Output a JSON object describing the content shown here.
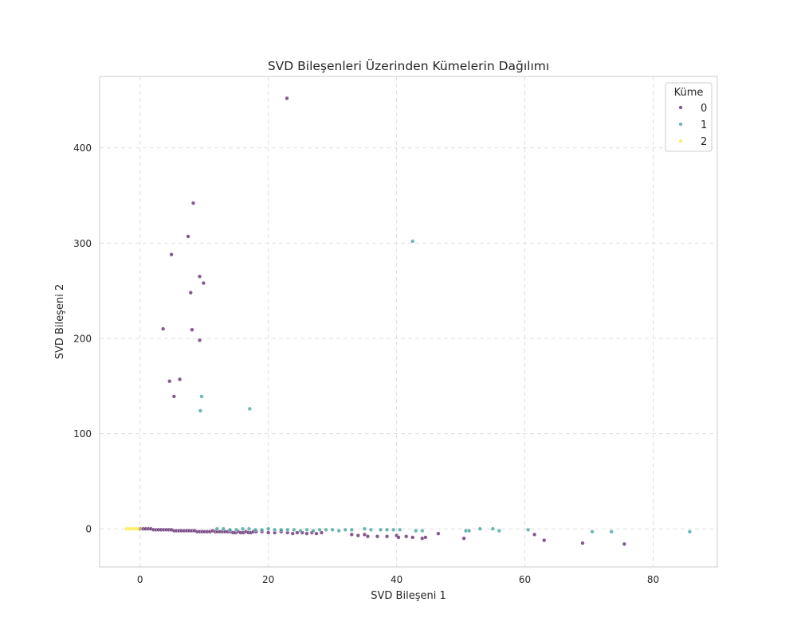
{
  "chart_data": {
    "type": "scatter",
    "title": "SVD Bileşenleri Üzerinden Kümelerin Dağılımı",
    "xlabel": "SVD Bileşeni 1",
    "ylabel": "SVD Bileşeni 2",
    "xlim": [
      -6.3,
      90
    ],
    "ylim": [
      -40,
      475
    ],
    "xticks": [
      0,
      20,
      40,
      60,
      80
    ],
    "yticks": [
      0,
      100,
      200,
      300,
      400
    ],
    "grid": true,
    "grid_style": "dashed",
    "legend": {
      "title": "Küme",
      "placement": "top-right"
    },
    "series": [
      {
        "name": "0",
        "color": "#440154",
        "points": [
          [
            0.0,
            0
          ],
          [
            0.5,
            0
          ],
          [
            0.9,
            0
          ],
          [
            1.3,
            0
          ],
          [
            1.7,
            0
          ],
          [
            2.1,
            -1
          ],
          [
            2.5,
            -1
          ],
          [
            2.9,
            -1
          ],
          [
            3.3,
            -1
          ],
          [
            3.7,
            -1
          ],
          [
            4.1,
            -1
          ],
          [
            4.5,
            -1
          ],
          [
            4.9,
            -1
          ],
          [
            5.3,
            -2
          ],
          [
            5.7,
            -2
          ],
          [
            6.1,
            -2
          ],
          [
            6.5,
            -2
          ],
          [
            6.9,
            -2
          ],
          [
            7.3,
            -2
          ],
          [
            7.7,
            -2
          ],
          [
            8.1,
            -2
          ],
          [
            8.5,
            -2
          ],
          [
            8.9,
            -3
          ],
          [
            9.3,
            -3
          ],
          [
            9.7,
            -3
          ],
          [
            10.1,
            -3
          ],
          [
            10.5,
            -3
          ],
          [
            10.9,
            -3
          ],
          [
            11.3,
            -2
          ],
          [
            11.7,
            -3
          ],
          [
            12.1,
            -3
          ],
          [
            12.5,
            -3
          ],
          [
            12.9,
            -3
          ],
          [
            13.3,
            -3
          ],
          [
            13.7,
            -3
          ],
          [
            14.1,
            -3
          ],
          [
            14.5,
            -4
          ],
          [
            14.9,
            -4
          ],
          [
            15.3,
            -3
          ],
          [
            15.7,
            -4
          ],
          [
            16.1,
            -4
          ],
          [
            16.5,
            -3
          ],
          [
            16.9,
            -4
          ],
          [
            17.3,
            -4
          ],
          [
            17.7,
            -3
          ],
          [
            18.1,
            -3
          ],
          [
            19.0,
            -3
          ],
          [
            20.0,
            -4
          ],
          [
            21.0,
            -4
          ],
          [
            22.0,
            -3
          ],
          [
            23.0,
            -4
          ],
          [
            23.8,
            -5
          ],
          [
            24.5,
            -4
          ],
          [
            25.3,
            -4
          ],
          [
            26.0,
            -5
          ],
          [
            26.8,
            -4
          ],
          [
            27.5,
            -5
          ],
          [
            28.3,
            -4
          ],
          [
            33.0,
            -6
          ],
          [
            34.0,
            -7
          ],
          [
            35.0,
            -6
          ],
          [
            35.5,
            -8
          ],
          [
            37.0,
            -8
          ],
          [
            38.5,
            -8
          ],
          [
            40.0,
            -7
          ],
          [
            40.3,
            -9
          ],
          [
            41.5,
            -8
          ],
          [
            42.5,
            -9
          ],
          [
            44.0,
            -10
          ],
          [
            44.5,
            -9
          ],
          [
            46.5,
            -5
          ],
          [
            50.5,
            -10
          ],
          [
            61.5,
            -6
          ],
          [
            63.0,
            -12
          ],
          [
            69.0,
            -15
          ],
          [
            75.5,
            -16
          ],
          [
            22.9,
            452
          ],
          [
            8.3,
            342
          ],
          [
            7.5,
            307
          ],
          [
            4.9,
            288
          ],
          [
            9.3,
            265
          ],
          [
            9.9,
            258
          ],
          [
            7.9,
            248
          ],
          [
            3.6,
            210
          ],
          [
            8.1,
            209
          ],
          [
            9.3,
            198
          ],
          [
            4.6,
            155
          ],
          [
            6.2,
            157
          ],
          [
            5.3,
            139
          ]
        ]
      },
      {
        "name": "1",
        "color": "#21918c",
        "points": [
          [
            12.0,
            0
          ],
          [
            13.0,
            0
          ],
          [
            14.0,
            -1
          ],
          [
            15.0,
            -1
          ],
          [
            16.0,
            0
          ],
          [
            17.0,
            0
          ],
          [
            18.0,
            -1
          ],
          [
            19.0,
            -1
          ],
          [
            20.0,
            0
          ],
          [
            21.0,
            -1
          ],
          [
            22.0,
            -1
          ],
          [
            23.0,
            -1
          ],
          [
            24.0,
            -1
          ],
          [
            25.0,
            -2
          ],
          [
            26.0,
            -1
          ],
          [
            27.0,
            -2
          ],
          [
            28.0,
            -1
          ],
          [
            29.0,
            -1
          ],
          [
            30.0,
            -1
          ],
          [
            31.0,
            -2
          ],
          [
            32.0,
            -1
          ],
          [
            33.0,
            -1
          ],
          [
            35.0,
            0
          ],
          [
            36.0,
            -1
          ],
          [
            37.5,
            -1
          ],
          [
            38.5,
            -1
          ],
          [
            39.5,
            -1
          ],
          [
            40.5,
            -1
          ],
          [
            43.0,
            -2
          ],
          [
            44.0,
            -2
          ],
          [
            50.8,
            -2
          ],
          [
            51.3,
            -2
          ],
          [
            53.0,
            0
          ],
          [
            55.0,
            0
          ],
          [
            56.0,
            -2
          ],
          [
            60.5,
            -1
          ],
          [
            70.5,
            -3
          ],
          [
            73.5,
            -3
          ],
          [
            85.7,
            -3
          ],
          [
            42.5,
            302
          ],
          [
            9.6,
            139
          ],
          [
            9.4,
            124
          ],
          [
            17.1,
            126
          ]
        ]
      },
      {
        "name": "2",
        "color": "#fde725",
        "points": [
          [
            -2.1,
            0
          ],
          [
            -1.7,
            0
          ],
          [
            -1.3,
            0
          ],
          [
            -0.9,
            0
          ],
          [
            -0.5,
            0
          ],
          [
            -0.2,
            0
          ]
        ]
      }
    ]
  }
}
